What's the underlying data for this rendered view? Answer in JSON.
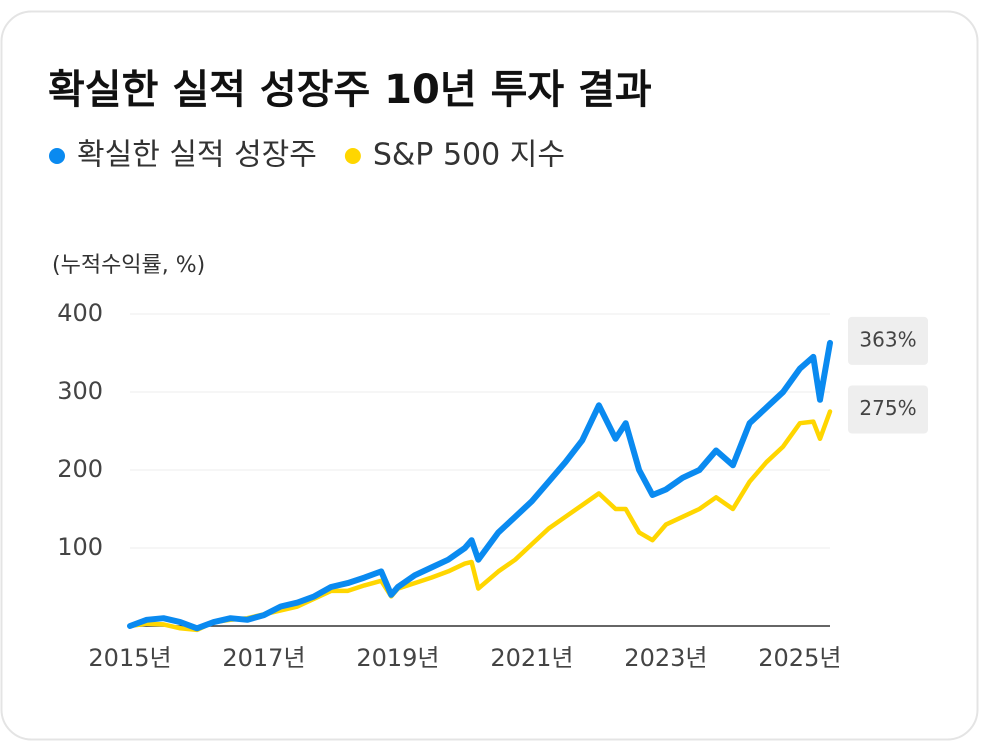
{
  "chart_data": {
    "type": "line",
    "title": "확실한 실적 성장주 10년 투자 결과",
    "y_label": "(누적수익률, %)",
    "x": [
      2015,
      2015.25,
      2015.5,
      2015.75,
      2016,
      2016.25,
      2016.5,
      2016.75,
      2017,
      2017.25,
      2017.5,
      2017.75,
      2018,
      2018.25,
      2018.5,
      2018.75,
      2018.9,
      2019,
      2019.25,
      2019.5,
      2019.75,
      2020,
      2020.1,
      2020.2,
      2020.5,
      2020.75,
      2021,
      2021.25,
      2021.5,
      2021.75,
      2022,
      2022.25,
      2022.4,
      2022.6,
      2022.8,
      2023,
      2023.25,
      2023.5,
      2023.75,
      2024,
      2024.25,
      2024.5,
      2024.75,
      2025,
      2025.2,
      2025.3,
      2025.45
    ],
    "series": [
      {
        "name": "확실한 실적 성장주",
        "color": "#0a8af0",
        "values": [
          0,
          8,
          10,
          5,
          -3,
          5,
          10,
          8,
          14,
          25,
          30,
          38,
          50,
          55,
          62,
          70,
          40,
          50,
          65,
          75,
          85,
          100,
          110,
          85,
          120,
          140,
          160,
          185,
          210,
          238,
          283,
          240,
          260,
          200,
          168,
          175,
          190,
          200,
          225,
          206,
          260,
          280,
          300,
          330,
          345,
          290,
          363
        ],
        "value_labels": [
          null,
          null,
          null,
          null,
          null,
          null,
          null,
          null,
          null,
          null,
          null,
          null,
          null,
          null,
          null,
          null,
          null,
          null,
          null,
          null,
          null,
          null,
          null,
          null,
          null,
          null,
          null,
          null,
          null,
          null,
          null,
          null,
          null,
          null,
          null,
          null,
          null,
          null,
          null,
          null,
          null,
          null,
          null,
          null,
          null,
          null,
          "363%"
        ]
      },
      {
        "name": "S&P 500 지수",
        "color": "#ffd600",
        "values": [
          0,
          3,
          2,
          -3,
          -5,
          5,
          8,
          10,
          15,
          20,
          25,
          35,
          45,
          45,
          52,
          58,
          38,
          48,
          55,
          62,
          70,
          80,
          82,
          48,
          70,
          85,
          105,
          125,
          140,
          155,
          170,
          150,
          150,
          120,
          110,
          130,
          140,
          150,
          165,
          150,
          185,
          210,
          230,
          260,
          262,
          240,
          275
        ],
        "value_labels": [
          null,
          null,
          null,
          null,
          null,
          null,
          null,
          null,
          null,
          null,
          null,
          null,
          null,
          null,
          null,
          null,
          null,
          null,
          null,
          null,
          null,
          null,
          null,
          null,
          null,
          null,
          null,
          null,
          null,
          null,
          null,
          null,
          null,
          null,
          null,
          null,
          null,
          null,
          null,
          null,
          null,
          null,
          null,
          null,
          null,
          null,
          "275%"
        ]
      }
    ],
    "xlim": [
      2015,
      2025.45
    ],
    "xticks": [
      {
        "value": 2015,
        "label": "2015년"
      },
      {
        "value": 2017,
        "label": "2017년"
      },
      {
        "value": 2019,
        "label": "2019년"
      },
      {
        "value": 2021,
        "label": "2021년"
      },
      {
        "value": 2023,
        "label": "2023년"
      },
      {
        "value": 2025,
        "label": "2025년"
      }
    ],
    "ylim": [
      0,
      400
    ],
    "yticks": [
      100,
      200,
      300,
      400
    ],
    "grid": true,
    "legend": "top-left"
  }
}
